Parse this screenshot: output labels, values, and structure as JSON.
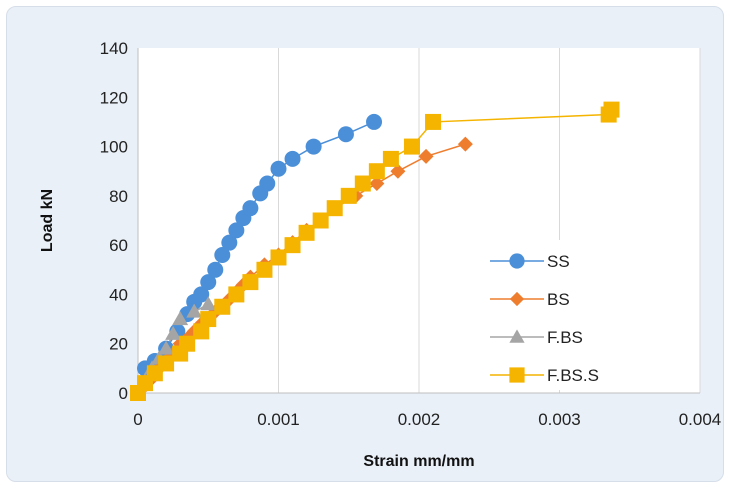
{
  "chart_data": {
    "type": "scatter",
    "title": "",
    "xlabel": "Strain mm/mm",
    "ylabel": "Load kN",
    "xlim": [
      0,
      0.004
    ],
    "ylim": [
      0,
      140
    ],
    "xticks": [
      0,
      0.001,
      0.002,
      0.003,
      0.004
    ],
    "xtick_labels": [
      "0",
      "0.001",
      "0.002",
      "0.003",
      "0.004"
    ],
    "yticks": [
      0,
      20,
      40,
      60,
      80,
      100,
      120,
      140
    ],
    "ytick_labels": [
      "0",
      "20",
      "40",
      "60",
      "80",
      "100",
      "120",
      "140"
    ],
    "grid": "vertical",
    "legend_position": "right",
    "series": [
      {
        "name": "SS",
        "color": "#4a8fd8",
        "marker": "circle",
        "x": [
          0,
          5e-05,
          0.00012,
          0.0002,
          0.00028,
          0.00035,
          0.0004,
          0.00045,
          0.0005,
          0.00055,
          0.0006,
          0.00065,
          0.0007,
          0.00075,
          0.0008,
          0.00087,
          0.00092,
          0.001,
          0.0011,
          0.00125,
          0.00148,
          0.00168
        ],
        "y": [
          0,
          10,
          13,
          18,
          25,
          32,
          37,
          40,
          45,
          50,
          56,
          61,
          66,
          71,
          75,
          81,
          85,
          91,
          95,
          100,
          105,
          110
        ]
      },
      {
        "name": "BS",
        "color": "#ee7d2e",
        "marker": "diamond",
        "x": [
          0,
          5e-05,
          0.0001,
          0.00015,
          0.0002,
          0.00025,
          0.0003,
          0.00035,
          0.0004,
          0.00045,
          0.0005,
          0.00055,
          0.0006,
          0.00065,
          0.0007,
          0.00075,
          0.0008,
          0.0009,
          0.001,
          0.0011,
          0.0012,
          0.0013,
          0.0014,
          0.00155,
          0.0017,
          0.00185,
          0.00205,
          0.00233
        ],
        "y": [
          0,
          3,
          6,
          10,
          13,
          16,
          20,
          22,
          25,
          28,
          30,
          33,
          35,
          38,
          41,
          44,
          47,
          52,
          56,
          61,
          66,
          70,
          75,
          80,
          85,
          90,
          96,
          101
        ]
      },
      {
        "name": "F.BS",
        "color": "#a5a5a5",
        "marker": "triangle",
        "x": [
          0,
          5e-05,
          0.0001,
          0.00015,
          0.0002,
          0.00025,
          0.0003,
          0.0004,
          0.0005
        ],
        "y": [
          0,
          5,
          10,
          14,
          18,
          24,
          30,
          33,
          36
        ]
      },
      {
        "name": "F.BS.S",
        "color": "#f4b400",
        "marker": "square",
        "x": [
          0,
          5e-05,
          0.00012,
          0.0002,
          0.0003,
          0.00035,
          0.00045,
          0.0005,
          0.0006,
          0.0007,
          0.0008,
          0.0009,
          0.001,
          0.0011,
          0.0012,
          0.0013,
          0.0014,
          0.0015,
          0.0016,
          0.0017,
          0.0018,
          0.00195,
          0.0021,
          0.00335,
          0.00337
        ],
        "y": [
          0,
          4,
          8,
          12,
          16,
          20,
          25,
          30,
          35,
          40,
          45,
          50,
          55,
          60,
          65,
          70,
          75,
          80,
          85,
          90,
          95,
          100,
          110,
          113,
          115
        ]
      }
    ]
  }
}
